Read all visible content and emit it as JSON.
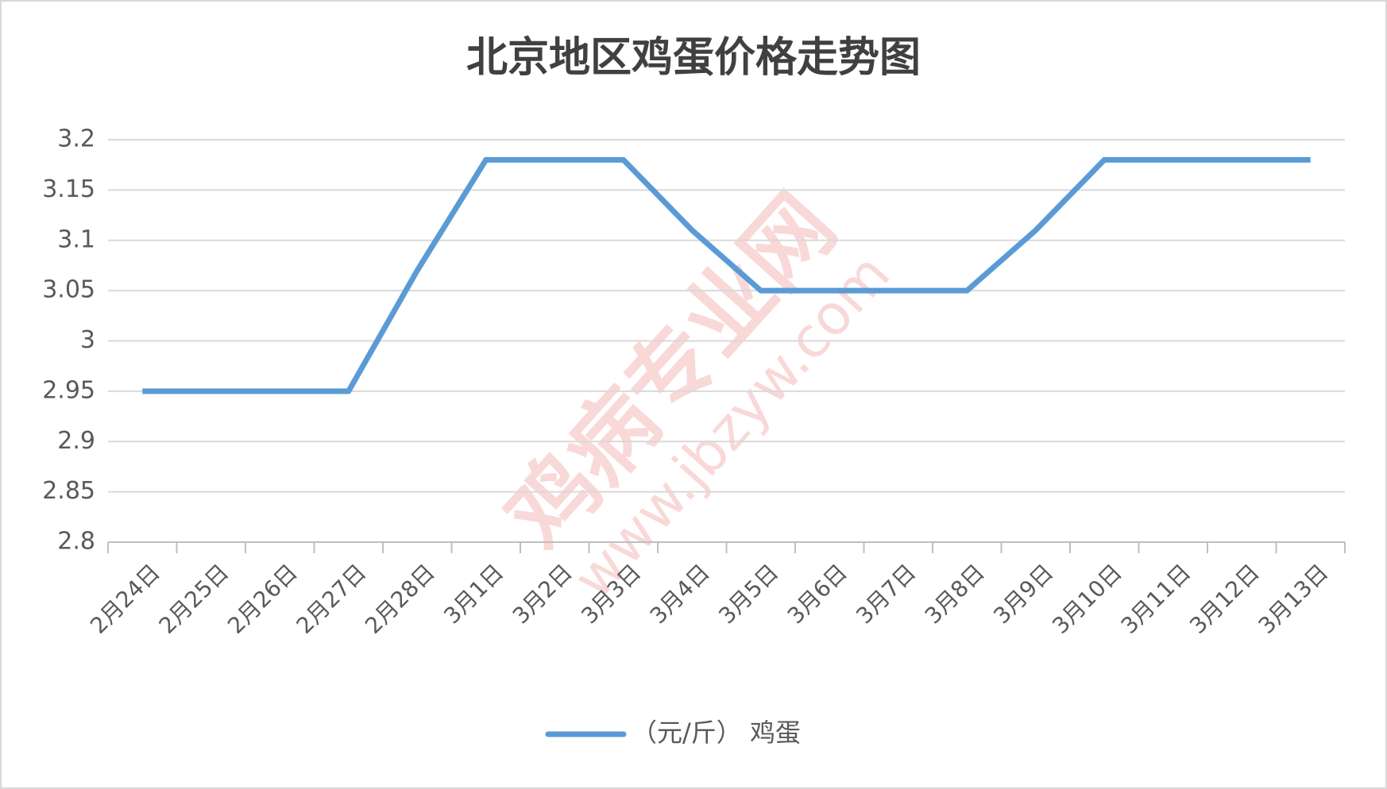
{
  "chart_data": {
    "type": "line",
    "title": "北京地区鸡蛋价格走势图",
    "categories": [
      "2月24日",
      "2月25日",
      "2月26日",
      "2月27日",
      "2月28日",
      "3月1日",
      "3月2日",
      "3月3日",
      "3月4日",
      "3月5日",
      "3月6日",
      "3月7日",
      "3月8日",
      "3月9日",
      "3月10日",
      "3月11日",
      "3月12日",
      "3月13日"
    ],
    "series": [
      {
        "name": "（元/斤） 鸡蛋",
        "color": "#5b9bd5",
        "values": [
          2.95,
          2.95,
          2.95,
          2.95,
          3.07,
          3.18,
          3.18,
          3.18,
          3.11,
          3.05,
          3.05,
          3.05,
          3.05,
          3.11,
          3.18,
          3.18,
          3.18,
          3.18
        ]
      }
    ],
    "ylim": [
      2.8,
      3.2
    ],
    "yticks": [
      2.8,
      2.85,
      2.9,
      2.95,
      3,
      3.05,
      3.1,
      3.15,
      3.2
    ],
    "grid": true,
    "legend": "bottom",
    "watermark": [
      "鸡病专业网",
      "www.jbzyw.com"
    ]
  }
}
